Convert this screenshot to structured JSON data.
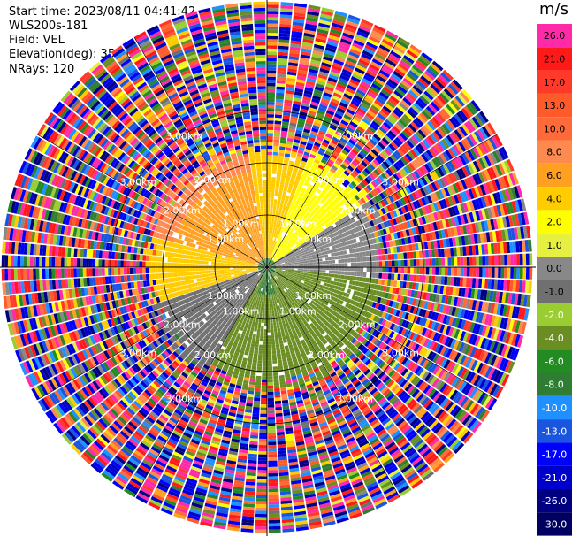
{
  "info": {
    "start_time": "Start time: 2023/08/11 04:41:42",
    "instrument": "WLS200s-181",
    "field": "Field: VEL",
    "elevation": "Elevation(deg): 35.30",
    "nrays": "NRays: 120"
  },
  "colorbar": {
    "unit": "m/s",
    "ticks": [
      "26.0",
      "21.0",
      "17.0",
      "13.0",
      "10.0",
      "8.0",
      "6.0",
      "4.0",
      "2.0",
      "1.0",
      "0.0",
      "-1.0",
      "-2.0",
      "-4.0",
      "-6.0",
      "-8.0",
      "-10.0",
      "-13.0",
      "-17.0",
      "-21.0",
      "-26.0",
      "-30.0"
    ],
    "colors": [
      "#ff2aa8",
      "#ff1a1a",
      "#ff3a2a",
      "#ff5a2a",
      "#ff6a3a",
      "#ff8a50",
      "#ffa020",
      "#ffcc00",
      "#ffff00",
      "#e6f040",
      "#888888",
      "#707070",
      "#9acd32",
      "#6b8e23",
      "#228b22",
      "#2e7d32",
      "#1e90ff",
      "#1a55e0",
      "#0000ff",
      "#0000cd",
      "#000080",
      "#000060"
    ]
  },
  "chart_data": {
    "type": "ppi_radar",
    "field": "VEL",
    "units": "m/s",
    "n_rays": 120,
    "range_rings_km": [
      1.0,
      2.0,
      3.0
    ],
    "range_ring_labels": [
      "1.00km",
      "2.00km",
      "3.00km"
    ],
    "colorbar_bounds": [
      26.0,
      21.0,
      17.0,
      13.0,
      10.0,
      8.0,
      6.0,
      4.0,
      2.0,
      1.0,
      0.0,
      -1.0,
      -2.0,
      -4.0,
      -6.0,
      -8.0,
      -10.0,
      -13.0,
      -17.0,
      -21.0,
      -26.0,
      -30.0
    ],
    "sectors": [
      {
        "region": "north-west inner",
        "value_range": [
          4.0,
          8.0
        ]
      },
      {
        "region": "west inner",
        "value_range": [
          2.0,
          4.0
        ]
      },
      {
        "region": "north-east inner",
        "value_range": [
          1.0,
          2.0
        ]
      },
      {
        "region": "east inner",
        "value_range": [
          -2.0,
          0.0
        ]
      },
      {
        "region": "south inner",
        "value_range": [
          -6.0,
          -4.0
        ]
      },
      {
        "region": "near center south",
        "value_range": [
          -10.0,
          -8.0
        ]
      },
      {
        "region": "outer ring",
        "value_range": [
          -30.0,
          26.0
        ]
      }
    ]
  }
}
